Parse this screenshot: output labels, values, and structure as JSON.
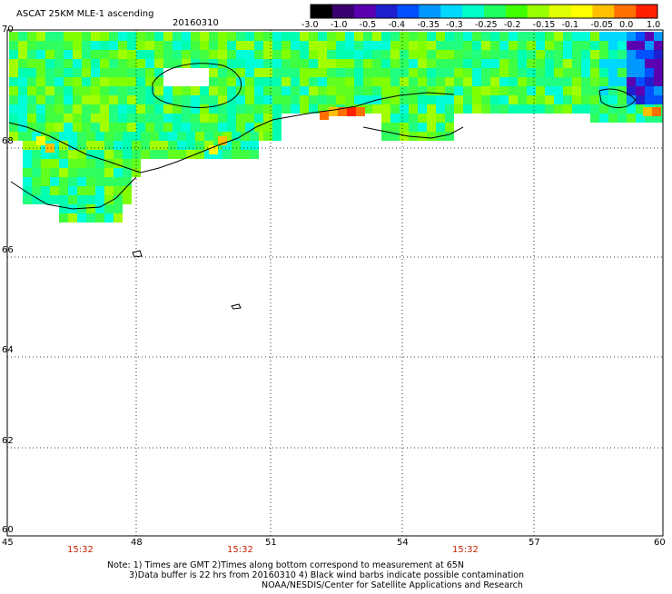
{
  "header": {
    "title": "ASCAT 25KM MLE-1 ascending",
    "date": "20160310"
  },
  "colorbar": {
    "labels": [
      "-3.0",
      "-1.0",
      "-0.5",
      "-0.4",
      "-0.35",
      "-0.3",
      "-0.25",
      "-0.2",
      "-0.15",
      "-0.1",
      "-0.05",
      "0.0",
      "1.0"
    ],
    "colors": [
      "#000000",
      "#3a0070",
      "#5a00b0",
      "#2020d0",
      "#0050ff",
      "#0098ff",
      "#00d8ff",
      "#00ffc8",
      "#20ff60",
      "#40ff00",
      "#98ff00",
      "#e0ff00",
      "#ffff00",
      "#ffc000",
      "#ff7000",
      "#ff2000"
    ]
  },
  "map": {
    "lat_labels": [
      "70",
      "68",
      "66",
      "64",
      "62",
      "60"
    ],
    "lon_labels": [
      "45",
      "48",
      "51",
      "54",
      "57",
      "60"
    ],
    "times": [
      "15:32",
      "15:32",
      "15:32"
    ]
  },
  "notes": {
    "line1": "Note: 1) Times are GMT 2)Times along bottom correspond to measurement at 65N",
    "line2": "3)Data buffer is 22 hrs from 20160310 4) Black wind barbs indicate possible contamination",
    "line3": "NOAA/NESDIS/Center for Satellite Applications and Research"
  }
}
